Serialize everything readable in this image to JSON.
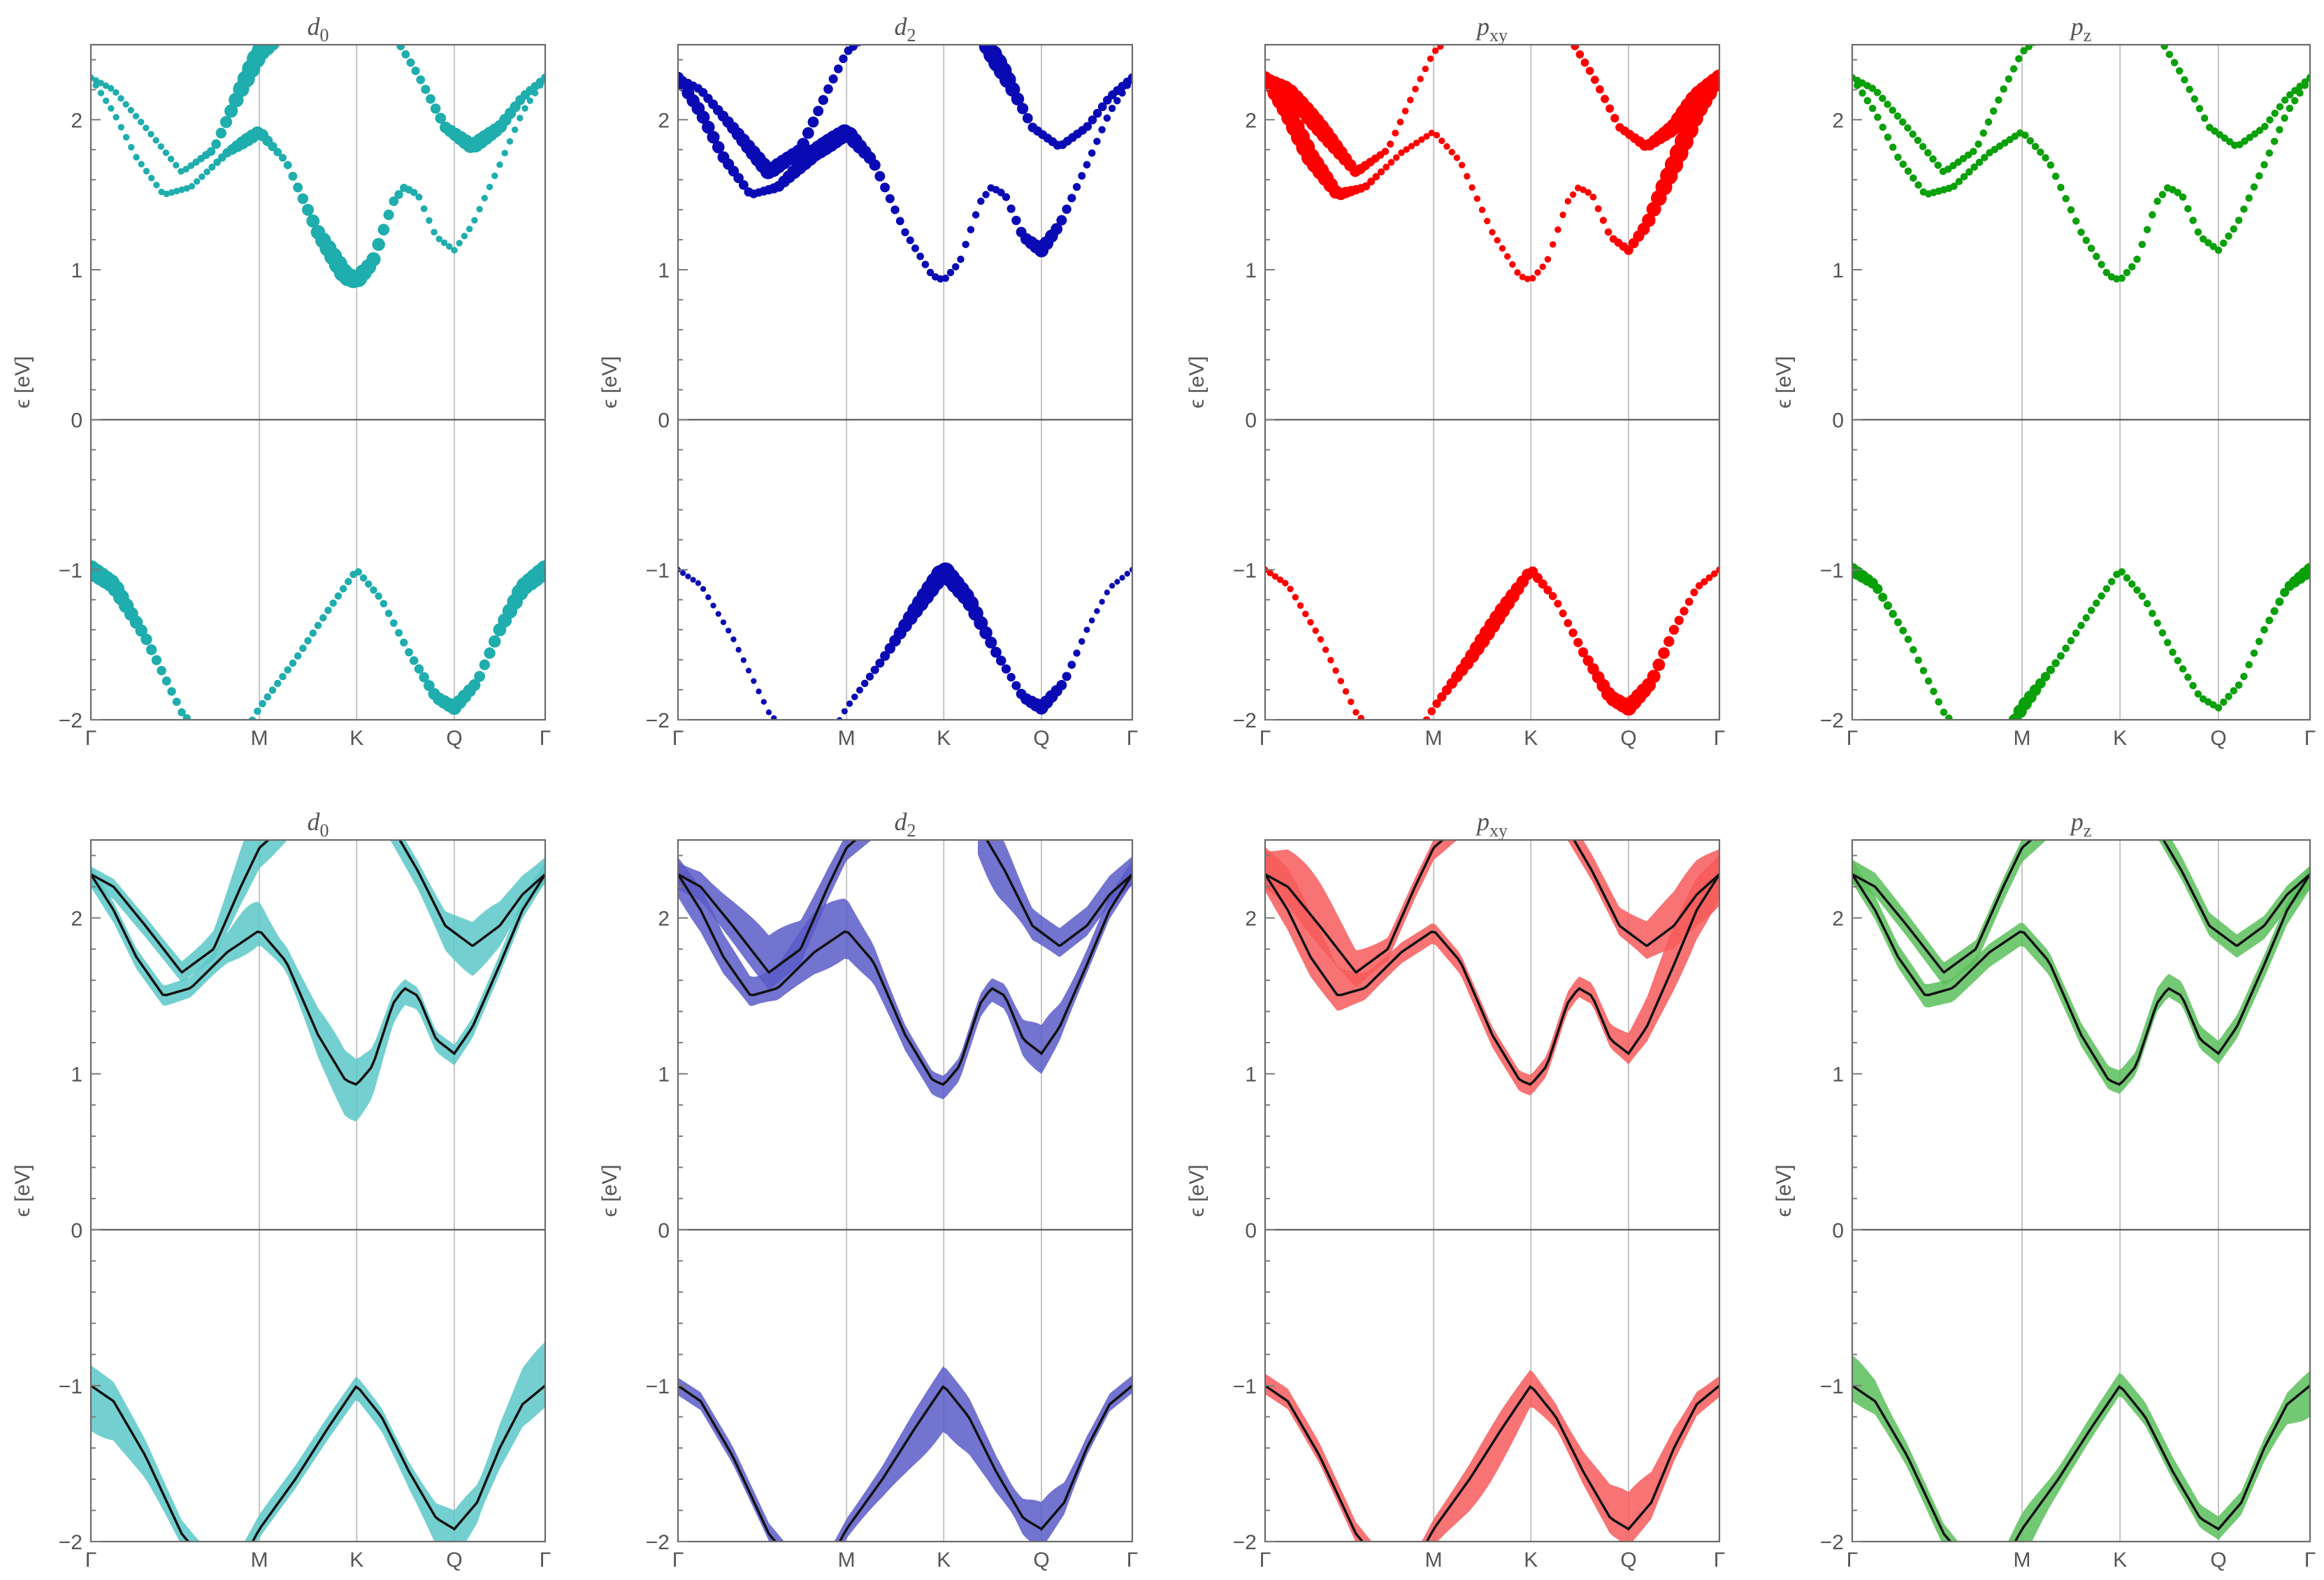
{
  "figure": {
    "rows": 2,
    "cols": 4
  },
  "chart_data": [
    {
      "panel": "top-d0",
      "type": "scatter",
      "title": {
        "main": "d",
        "sub": "0"
      },
      "color": "#1fadad",
      "ylabel": "ϵ [eV]",
      "ylim": [
        -2,
        2.5
      ],
      "yticks": [
        -2,
        -1,
        0,
        1,
        2
      ],
      "xticks": [
        "Γ",
        "M",
        "K",
        "Q",
        "Γ"
      ],
      "x_sym": [
        0,
        0.371,
        0.585,
        0.8,
        1.0
      ],
      "dft_band_values": {
        "Γ": [
          -1.0,
          2.28
        ],
        "M": [
          -1.9,
          1.92,
          2.45
        ],
        "K": [
          -1.0,
          0.93
        ],
        "Q": [
          -1.9,
          1.13,
          1.82
        ]
      },
      "projection": "strong on lower conduction band near K and valence band near Γ"
    },
    {
      "panel": "top-d2",
      "type": "scatter",
      "title": {
        "main": "d",
        "sub": "2"
      },
      "color": "#0a0ab4",
      "ylabel": "ϵ [eV]",
      "ylim": [
        -2,
        2.5
      ],
      "yticks": [
        -2,
        -1,
        0,
        1,
        2
      ],
      "xticks": [
        "Γ",
        "M",
        "K",
        "Q",
        "Γ"
      ],
      "x_sym": [
        0,
        0.371,
        0.585,
        0.8,
        1.0
      ],
      "projection": "strong on valence band near K and conduction band near M and Q"
    },
    {
      "panel": "top-pxy",
      "type": "scatter",
      "title": {
        "main": "p",
        "sub": "xy"
      },
      "color": "#ff0000",
      "ylabel": "ϵ [eV]",
      "ylim": [
        -2,
        2.5
      ],
      "yticks": [
        -2,
        -1,
        0,
        1,
        2
      ],
      "xticks": [
        "Γ",
        "M",
        "K",
        "Q",
        "Γ"
      ],
      "x_sym": [
        0,
        0.371,
        0.585,
        0.8,
        1.0
      ],
      "projection": "strong on conduction bands near Γ and Q"
    },
    {
      "panel": "top-pz",
      "type": "scatter",
      "title": {
        "main": "p",
        "sub": "z"
      },
      "color": "#0aa00a",
      "ylabel": "ϵ [eV]",
      "ylim": [
        -2,
        2.5
      ],
      "yticks": [
        -2,
        -1,
        0,
        1,
        2
      ],
      "xticks": [
        "Γ",
        "M",
        "K",
        "Q",
        "Γ"
      ],
      "x_sym": [
        0,
        0.371,
        0.585,
        0.8,
        1.0
      ],
      "projection": "weak, small markers"
    },
    {
      "panel": "bottom-d0",
      "type": "line",
      "title": {
        "main": "d",
        "sub": "0"
      },
      "color": "#5cc8c8",
      "ylabel": "ϵ [eV]",
      "ylim": [
        -2,
        2.5
      ],
      "yticks": [
        -2,
        -1,
        0,
        1,
        2
      ],
      "xticks": [
        "Γ",
        "M",
        "K",
        "Q",
        "Γ"
      ],
      "x_sym": [
        0,
        0.371,
        0.585,
        0.8,
        1.0
      ]
    },
    {
      "panel": "bottom-d2",
      "type": "line",
      "title": {
        "main": "d",
        "sub": "2"
      },
      "color": "#5a5ac8",
      "ylabel": "ϵ [eV]",
      "ylim": [
        -2,
        2.5
      ],
      "yticks": [
        -2,
        -1,
        0,
        1,
        2
      ],
      "xticks": [
        "Γ",
        "M",
        "K",
        "Q",
        "Γ"
      ],
      "x_sym": [
        0,
        0.371,
        0.585,
        0.8,
        1.0
      ]
    },
    {
      "panel": "bottom-pxy",
      "type": "line",
      "title": {
        "main": "p",
        "sub": "xy"
      },
      "color": "#f75a5a",
      "ylabel": "ϵ [eV]",
      "ylim": [
        -2,
        2.5
      ],
      "yticks": [
        -2,
        -1,
        0,
        1,
        2
      ],
      "xticks": [
        "Γ",
        "M",
        "K",
        "Q",
        "Γ"
      ],
      "x_sym": [
        0,
        0.371,
        0.585,
        0.8,
        1.0
      ]
    },
    {
      "panel": "bottom-pz",
      "type": "line",
      "title": {
        "main": "p",
        "sub": "z"
      },
      "color": "#5ac05a",
      "ylabel": "ϵ [eV]",
      "ylim": [
        -2,
        2.5
      ],
      "yticks": [
        -2,
        -1,
        0,
        1,
        2
      ],
      "xticks": [
        "Γ",
        "M",
        "K",
        "Q",
        "Γ"
      ],
      "x_sym": [
        0,
        0.371,
        0.585,
        0.8,
        1.0
      ]
    }
  ],
  "bands": {
    "vb": [
      [
        0,
        -1.0
      ],
      [
        0.05,
        -1.1
      ],
      [
        0.12,
        -1.45
      ],
      [
        0.2,
        -1.95
      ],
      [
        0.3,
        -2.3
      ],
      [
        0.371,
        -1.92
      ],
      [
        0.45,
        -1.6
      ],
      [
        0.52,
        -1.28
      ],
      [
        0.585,
        -1.0
      ],
      [
        0.64,
        -1.2
      ],
      [
        0.7,
        -1.55
      ],
      [
        0.76,
        -1.85
      ],
      [
        0.8,
        -1.92
      ],
      [
        0.85,
        -1.75
      ],
      [
        0.9,
        -1.4
      ],
      [
        0.95,
        -1.12
      ],
      [
        1.0,
        -1.0
      ]
    ],
    "c1": [
      [
        0,
        2.28
      ],
      [
        0.05,
        2.05
      ],
      [
        0.1,
        1.75
      ],
      [
        0.16,
        1.5
      ],
      [
        0.22,
        1.55
      ],
      [
        0.3,
        1.78
      ],
      [
        0.371,
        1.92
      ],
      [
        0.43,
        1.72
      ],
      [
        0.5,
        1.25
      ],
      [
        0.56,
        0.96
      ],
      [
        0.585,
        0.93
      ],
      [
        0.62,
        1.05
      ],
      [
        0.665,
        1.45
      ],
      [
        0.69,
        1.55
      ],
      [
        0.72,
        1.5
      ],
      [
        0.76,
        1.22
      ],
      [
        0.8,
        1.13
      ],
      [
        0.84,
        1.3
      ],
      [
        0.9,
        1.7
      ],
      [
        0.95,
        2.05
      ],
      [
        1.0,
        2.28
      ]
    ],
    "c2": [
      [
        0,
        2.28
      ],
      [
        0.05,
        2.2
      ],
      [
        0.12,
        1.95
      ],
      [
        0.2,
        1.65
      ],
      [
        0.27,
        1.8
      ],
      [
        0.33,
        2.2
      ],
      [
        0.371,
        2.45
      ],
      [
        0.43,
        2.6
      ]
    ],
    "c3": [
      [
        0.66,
        2.6
      ],
      [
        0.72,
        2.3
      ],
      [
        0.78,
        1.95
      ],
      [
        0.84,
        1.82
      ],
      [
        0.9,
        1.95
      ],
      [
        0.95,
        2.15
      ],
      [
        1.0,
        2.28
      ]
    ]
  }
}
